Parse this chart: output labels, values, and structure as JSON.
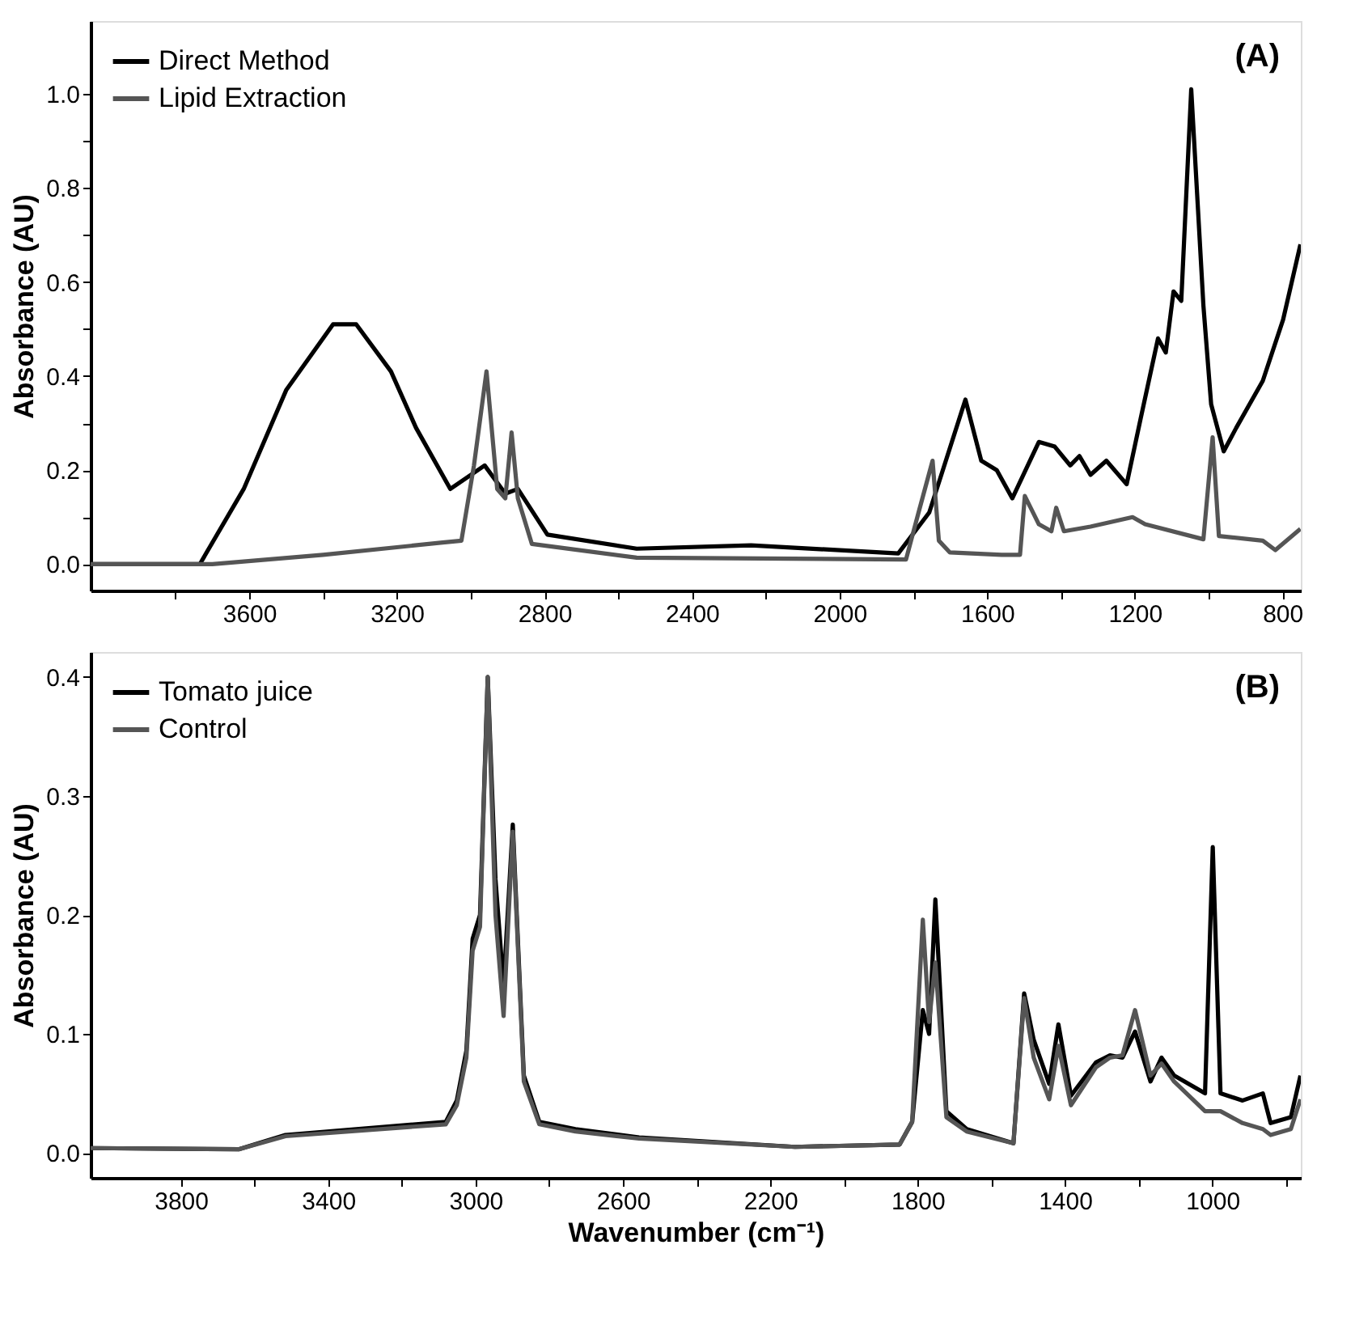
{
  "chart_data": [
    {
      "type": "line",
      "ylabel": "Absorbance (AU)",
      "annotations": [
        "(A)"
      ],
      "legend": "top left",
      "grid": false,
      "marker": "none",
      "line_style": "solid",
      "xlim": [
        4030,
        750
      ],
      "ylim": [
        -0.056,
        1.155
      ],
      "xticks": [
        {
          "value": 3800,
          "label": null
        },
        3600,
        {
          "value": 3400,
          "label": null
        },
        3200,
        {
          "value": 3000,
          "label": null
        },
        2800,
        {
          "value": 2600,
          "label": null
        },
        2400,
        {
          "value": 2200,
          "label": null
        },
        2000,
        {
          "value": 1800,
          "label": null
        },
        1600,
        {
          "value": 1400,
          "label": null
        },
        1200,
        {
          "value": 1000,
          "label": null
        },
        800
      ],
      "yticks": [
        {
          "value": 0,
          "label": "0.0"
        },
        {
          "value": 0.1,
          "label": null
        },
        0.2,
        {
          "value": 0.3,
          "label": null
        },
        0.4,
        {
          "value": 0.5,
          "label": null
        },
        0.6,
        {
          "value": 0.7,
          "label": null
        },
        0.8,
        {
          "value": 0.9,
          "label": null
        },
        {
          "value": 1,
          "label": "1.0"
        }
      ],
      "series": [
        {
          "name": "Direct Method",
          "color": "#000000",
          "x": [
            4030,
            3734,
            3615,
            3500,
            3373,
            3310,
            3216,
            3148,
            3055,
            2962,
            2906,
            2872,
            2792,
            2550,
            2240,
            1841,
            1757,
            1659,
            1616,
            1574,
            1532,
            1460,
            1417,
            1375,
            1350,
            1320,
            1277,
            1222,
            1184,
            1137,
            1116,
            1095,
            1074,
            1047,
            1014,
            993,
            959,
            925,
            853,
            798,
            751
          ],
          "values": [
            0.0,
            0.0,
            0.16,
            0.37,
            0.51,
            0.51,
            0.41,
            0.29,
            0.16,
            0.21,
            0.15,
            0.16,
            0.063,
            0.033,
            0.04,
            0.023,
            0.11,
            0.35,
            0.22,
            0.2,
            0.14,
            0.26,
            0.25,
            0.21,
            0.23,
            0.19,
            0.22,
            0.17,
            0.31,
            0.48,
            0.45,
            0.58,
            0.56,
            1.01,
            0.55,
            0.34,
            0.24,
            0.29,
            0.39,
            0.52,
            0.68
          ]
        },
        {
          "name": "Lipid Extraction",
          "color": "#555555",
          "x": [
            4030,
            3700,
            3400,
            3076,
            3025,
            2991,
            2957,
            2928,
            2906,
            2889,
            2872,
            2834,
            2550,
            1820,
            1786,
            1748,
            1731,
            1701,
            1561,
            1511,
            1498,
            1460,
            1426,
            1413,
            1392,
            1320,
            1206,
            1172,
            1014,
            989,
            972,
            853,
            819,
            751
          ],
          "values": [
            0.0,
            0.0,
            0.02,
            0.046,
            0.05,
            0.21,
            0.41,
            0.16,
            0.14,
            0.28,
            0.14,
            0.043,
            0.014,
            0.01,
            0.11,
            0.22,
            0.05,
            0.025,
            0.02,
            0.02,
            0.145,
            0.085,
            0.07,
            0.12,
            0.07,
            0.08,
            0.1,
            0.085,
            0.053,
            0.27,
            0.06,
            0.05,
            0.03,
            0.075
          ]
        }
      ]
    },
    {
      "type": "line",
      "xlabel": "Wavenumber (cm⁻¹)",
      "ylabel": "Absorbance (AU)",
      "annotations": [
        "(B)"
      ],
      "legend": "top left",
      "grid": false,
      "marker": "none",
      "line_style": "solid",
      "xlim": [
        4045,
        760
      ],
      "ylim": [
        -0.021,
        0.421
      ],
      "xticks": [
        3800,
        {
          "value": 3600,
          "label": null
        },
        3400,
        {
          "value": 3200,
          "label": null
        },
        3000,
        {
          "value": 2800,
          "label": null
        },
        2600,
        {
          "value": 2400,
          "label": null
        },
        2200,
        {
          "value": 2000,
          "label": null
        },
        1800,
        {
          "value": 1600,
          "label": null
        },
        1400,
        {
          "value": 1200,
          "label": null
        },
        1000,
        {
          "value": 800,
          "label": null
        }
      ],
      "yticks": [
        {
          "value": 0,
          "label": "0.0"
        },
        0.1,
        0.2,
        0.3,
        0.4
      ],
      "series": [
        {
          "name": "Tomato juice",
          "color": "#000000",
          "x": [
            4045,
            3643,
            3516,
            3081,
            3051,
            3025,
            3008,
            2988,
            2967,
            2946,
            2924,
            2899,
            2869,
            2827,
            2729,
            2556,
            2133,
            1849,
            1815,
            1786,
            1769,
            1752,
            1722,
            1667,
            1540,
            1511,
            1485,
            1443,
            1418,
            1384,
            1316,
            1278,
            1244,
            1210,
            1168,
            1138,
            1104,
            1020,
            999,
            978,
            918,
            863,
            842,
            787,
            761
          ],
          "values": [
            0.004,
            0.003,
            0.015,
            0.026,
            0.044,
            0.086,
            0.18,
            0.2,
            0.4,
            0.23,
            0.14,
            0.276,
            0.065,
            0.026,
            0.02,
            0.013,
            0.005,
            0.007,
            0.026,
            0.12,
            0.1,
            0.213,
            0.035,
            0.02,
            0.008,
            0.134,
            0.095,
            0.058,
            0.108,
            0.048,
            0.076,
            0.082,
            0.08,
            0.102,
            0.06,
            0.08,
            0.065,
            0.05,
            0.257,
            0.05,
            0.044,
            0.05,
            0.025,
            0.03,
            0.065
          ]
        },
        {
          "name": "Control",
          "color": "#555555",
          "x": [
            4045,
            3643,
            3516,
            3081,
            3051,
            3025,
            3008,
            2988,
            2967,
            2946,
            2924,
            2899,
            2869,
            2827,
            2729,
            2556,
            2133,
            1849,
            1815,
            1786,
            1769,
            1752,
            1722,
            1667,
            1540,
            1511,
            1485,
            1443,
            1418,
            1384,
            1316,
            1278,
            1244,
            1210,
            1168,
            1138,
            1104,
            1020,
            978,
            918,
            863,
            842,
            787,
            761
          ],
          "values": [
            0.004,
            0.003,
            0.014,
            0.024,
            0.04,
            0.08,
            0.17,
            0.19,
            0.4,
            0.2,
            0.115,
            0.27,
            0.06,
            0.024,
            0.018,
            0.012,
            0.005,
            0.007,
            0.026,
            0.196,
            0.11,
            0.16,
            0.03,
            0.018,
            0.008,
            0.13,
            0.08,
            0.045,
            0.09,
            0.04,
            0.072,
            0.08,
            0.082,
            0.12,
            0.065,
            0.075,
            0.06,
            0.035,
            0.035,
            0.025,
            0.02,
            0.015,
            0.02,
            0.045
          ]
        }
      ]
    }
  ]
}
